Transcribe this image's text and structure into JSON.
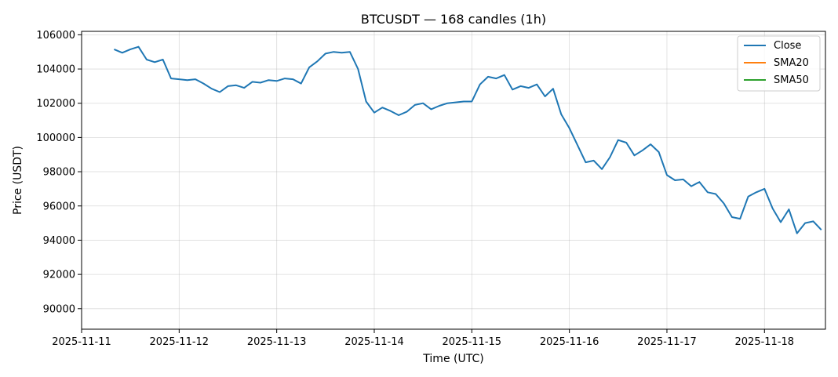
{
  "chart_data": {
    "type": "line",
    "title": "BTCUSDT — 168 candles (1h)",
    "xlabel": "Time (UTC)",
    "ylabel": "Price (USDT)",
    "ylim": [
      88800,
      106200
    ],
    "xlim": [
      "2025-11-11 00:00",
      "2025-11-18 15:00"
    ],
    "x_ticks": [
      "2025-11-11",
      "2025-11-12",
      "2025-11-13",
      "2025-11-14",
      "2025-11-15",
      "2025-11-16",
      "2025-11-17",
      "2025-11-18"
    ],
    "y_ticks": [
      90000,
      92000,
      94000,
      96000,
      98000,
      100000,
      102000,
      104000,
      106000
    ],
    "grid": true,
    "legend_position": "top-right",
    "series": [
      {
        "name": "Close",
        "color": "#1f77b4",
        "points": [
          [
            "2025-11-11 08:00",
            105150
          ],
          [
            "2025-11-11 10:00",
            104950
          ],
          [
            "2025-11-11 12:00",
            105150
          ],
          [
            "2025-11-11 14:00",
            105300
          ],
          [
            "2025-11-11 16:00",
            104550
          ],
          [
            "2025-11-11 18:00",
            104400
          ],
          [
            "2025-11-11 20:00",
            104550
          ],
          [
            "2025-11-11 22:00",
            103450
          ],
          [
            "2025-11-12 00:00",
            103400
          ],
          [
            "2025-11-12 02:00",
            103350
          ],
          [
            "2025-11-12 04:00",
            103400
          ],
          [
            "2025-11-12 06:00",
            103150
          ],
          [
            "2025-11-12 08:00",
            102850
          ],
          [
            "2025-11-12 10:00",
            102650
          ],
          [
            "2025-11-12 12:00",
            103000
          ],
          [
            "2025-11-12 14:00",
            103050
          ],
          [
            "2025-11-12 16:00",
            102900
          ],
          [
            "2025-11-12 18:00",
            103250
          ],
          [
            "2025-11-12 20:00",
            103200
          ],
          [
            "2025-11-12 22:00",
            103350
          ],
          [
            "2025-11-13 00:00",
            103300
          ],
          [
            "2025-11-13 02:00",
            103450
          ],
          [
            "2025-11-13 04:00",
            103400
          ],
          [
            "2025-11-13 06:00",
            103150
          ],
          [
            "2025-11-13 08:00",
            104100
          ],
          [
            "2025-11-13 10:00",
            104450
          ],
          [
            "2025-11-13 12:00",
            104900
          ],
          [
            "2025-11-13 14:00",
            105000
          ],
          [
            "2025-11-13 16:00",
            104950
          ],
          [
            "2025-11-13 18:00",
            105000
          ],
          [
            "2025-11-13 20:00",
            104000
          ],
          [
            "2025-11-13 22:00",
            102100
          ],
          [
            "2025-11-14 00:00",
            101450
          ],
          [
            "2025-11-14 02:00",
            101750
          ],
          [
            "2025-11-14 04:00",
            101550
          ],
          [
            "2025-11-14 06:00",
            101300
          ],
          [
            "2025-11-14 08:00",
            101500
          ],
          [
            "2025-11-14 10:00",
            101900
          ],
          [
            "2025-11-14 12:00",
            102000
          ],
          [
            "2025-11-14 14:00",
            101650
          ],
          [
            "2025-11-14 16:00",
            101850
          ],
          [
            "2025-11-14 18:00",
            102000
          ],
          [
            "2025-11-14 20:00",
            102050
          ],
          [
            "2025-11-14 22:00",
            102100
          ],
          [
            "2025-11-15 00:00",
            102100
          ],
          [
            "2025-11-15 02:00",
            103100
          ],
          [
            "2025-11-15 04:00",
            103550
          ],
          [
            "2025-11-15 06:00",
            103450
          ],
          [
            "2025-11-15 08:00",
            103650
          ],
          [
            "2025-11-15 10:00",
            102800
          ],
          [
            "2025-11-15 12:00",
            103000
          ],
          [
            "2025-11-15 14:00",
            102900
          ],
          [
            "2025-11-15 16:00",
            103100
          ],
          [
            "2025-11-15 18:00",
            102400
          ],
          [
            "2025-11-15 20:00",
            102850
          ],
          [
            "2025-11-15 22:00",
            101350
          ],
          [
            "2025-11-16 00:00",
            100550
          ],
          [
            "2025-11-16 02:00",
            99550
          ],
          [
            "2025-11-16 04:00",
            98550
          ],
          [
            "2025-11-16 06:00",
            98650
          ],
          [
            "2025-11-16 08:00",
            98150
          ],
          [
            "2025-11-16 10:00",
            98850
          ],
          [
            "2025-11-16 12:00",
            99850
          ],
          [
            "2025-11-16 14:00",
            99700
          ],
          [
            "2025-11-16 16:00",
            98950
          ],
          [
            "2025-11-16 18:00",
            99250
          ],
          [
            "2025-11-16 20:00",
            99600
          ],
          [
            "2025-11-16 22:00",
            99150
          ],
          [
            "2025-11-17 00:00",
            97800
          ],
          [
            "2025-11-17 02:00",
            97500
          ],
          [
            "2025-11-17 04:00",
            97550
          ],
          [
            "2025-11-17 06:00",
            97150
          ],
          [
            "2025-11-17 08:00",
            97400
          ],
          [
            "2025-11-17 10:00",
            96800
          ],
          [
            "2025-11-17 12:00",
            96700
          ],
          [
            "2025-11-17 14:00",
            96150
          ],
          [
            "2025-11-17 16:00",
            95350
          ],
          [
            "2025-11-17 18:00",
            95250
          ],
          [
            "2025-11-17 20:00",
            96550
          ],
          [
            "2025-11-17 22:00",
            96800
          ],
          [
            "2025-11-18 00:00",
            97000
          ],
          [
            "2025-11-18 02:00",
            95850
          ],
          [
            "2025-11-18 04:00",
            95050
          ],
          [
            "2025-11-18 06:00",
            95800
          ],
          [
            "2025-11-18 08:00",
            94400
          ],
          [
            "2025-11-18 10:00",
            95000
          ],
          [
            "2025-11-18 12:00",
            95100
          ],
          [
            "2025-11-18 14:00",
            94600
          ]
        ]
      },
      {
        "name": "SMA20",
        "color": "#ff7f0e",
        "points": []
      },
      {
        "name": "SMA50",
        "color": "#2ca02c",
        "points": []
      }
    ]
  }
}
